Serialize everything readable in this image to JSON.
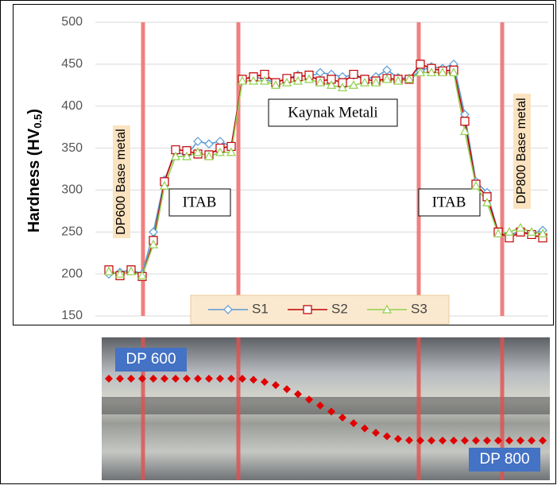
{
  "chart_data": {
    "type": "line",
    "y_label": [
      "Hardness (HV",
      "0.5",
      ")"
    ],
    "ylim": [
      150,
      500
    ],
    "yticks": [
      150,
      200,
      250,
      300,
      350,
      400,
      450,
      500
    ],
    "grid": true,
    "annotations": [
      "DP600 Base metal",
      "ITAB",
      "Kaynak Metali",
      "ITAB",
      "DP800 Base metal"
    ],
    "photo_labels": [
      "DP 600",
      "DP 800"
    ],
    "series": [
      {
        "name": "S1",
        "color": "#5b9bd5",
        "marker": "diamond",
        "values": [
          200,
          202,
          205,
          200,
          250,
          312,
          345,
          342,
          358,
          355,
          358,
          352,
          432,
          435,
          432,
          428,
          433,
          437,
          435,
          440,
          438,
          435,
          437,
          432,
          435,
          443,
          434,
          433,
          442,
          447,
          445,
          450,
          390,
          310,
          297,
          250,
          247,
          250,
          248,
          252
        ]
      },
      {
        "name": "S2",
        "color": "#c00000",
        "marker": "square",
        "values": [
          205,
          198,
          205,
          197,
          240,
          310,
          348,
          347,
          343,
          342,
          350,
          352,
          432,
          435,
          438,
          428,
          433,
          435,
          437,
          430,
          432,
          428,
          438,
          432,
          430,
          433,
          432,
          432,
          450,
          445,
          442,
          443,
          382,
          307,
          292,
          250,
          243,
          250,
          247,
          243
        ]
      },
      {
        "name": "S3",
        "color": "#92d050",
        "marker": "triangle",
        "values": [
          203,
          200,
          203,
          198,
          235,
          305,
          340,
          340,
          345,
          340,
          345,
          345,
          430,
          430,
          430,
          425,
          428,
          430,
          432,
          428,
          425,
          422,
          425,
          428,
          428,
          432,
          430,
          432,
          440,
          440,
          440,
          440,
          370,
          305,
          285,
          248,
          250,
          255,
          250,
          248
        ]
      }
    ]
  }
}
